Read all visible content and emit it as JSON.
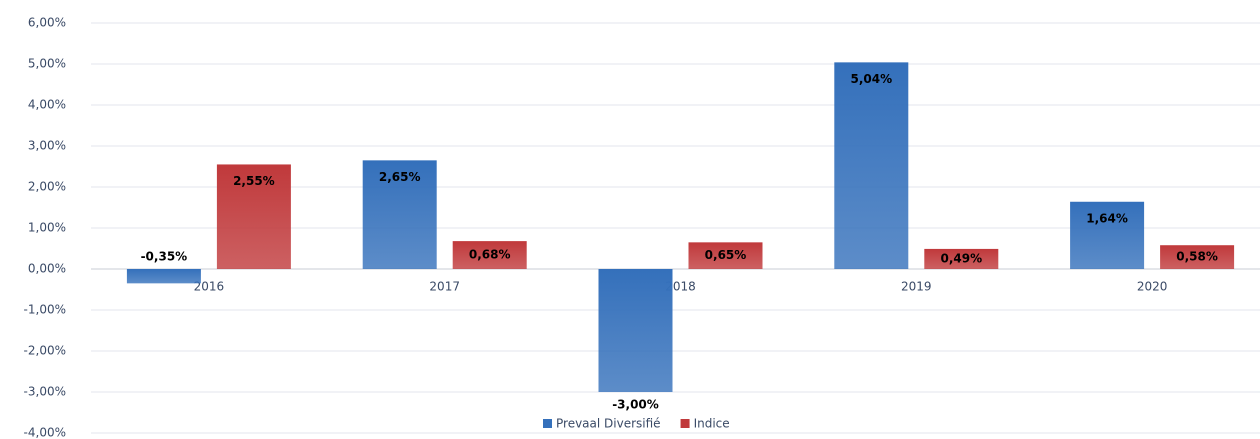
{
  "chart_data": {
    "type": "bar",
    "categories": [
      "2016",
      "2017",
      "2018",
      "2019",
      "2020"
    ],
    "series": [
      {
        "name": "Prevaal Diversifié",
        "color": "#3470bb",
        "values": [
          -0.35,
          2.65,
          -3.0,
          5.04,
          1.64
        ],
        "value_labels": [
          "-0,35%",
          "2,65%",
          "-3,00%",
          "5,04%",
          "1,64%"
        ]
      },
      {
        "name": "Indice",
        "color": "#c0393b",
        "values": [
          2.55,
          0.68,
          0.65,
          0.49,
          0.58
        ],
        "value_labels": [
          "2,55%",
          "0,68%",
          "0,65%",
          "0,49%",
          "0,58%"
        ]
      }
    ],
    "ylim": [
      -4,
      6
    ],
    "yticks": [
      {
        "value": -4,
        "label": "-4,00%"
      },
      {
        "value": -3,
        "label": "-3,00%"
      },
      {
        "value": -2,
        "label": "-2,00%"
      },
      {
        "value": -1,
        "label": "-1,00%"
      },
      {
        "value": 0,
        "label": "0,00%"
      },
      {
        "value": 1,
        "label": "1,00%"
      },
      {
        "value": 2,
        "label": "2,00%"
      },
      {
        "value": 3,
        "label": "3,00%"
      },
      {
        "value": 4,
        "label": "4,00%"
      },
      {
        "value": 5,
        "label": "5,00%"
      },
      {
        "value": 6,
        "label": "6,00%"
      }
    ],
    "grid": true,
    "legend": "bottom"
  }
}
